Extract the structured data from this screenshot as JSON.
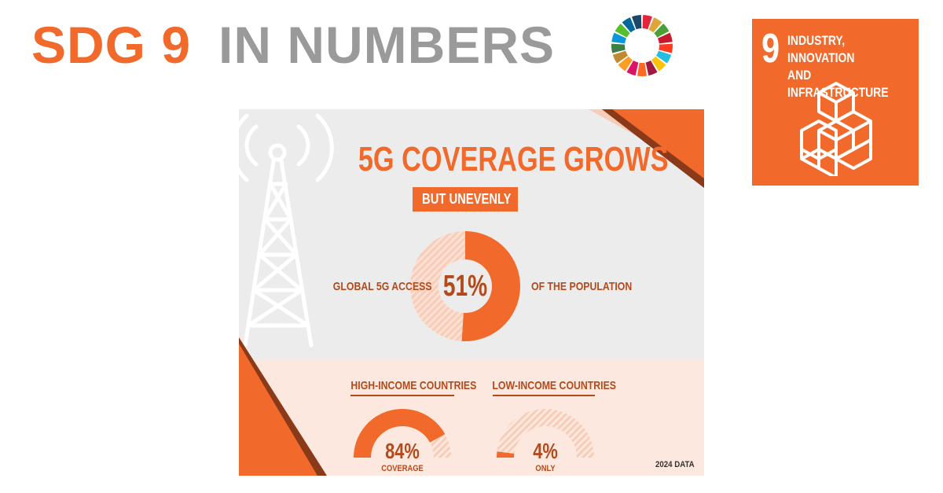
{
  "colors": {
    "accent": "#f26a2b",
    "dark": "#b24a1c",
    "pale": "#f7cdb8",
    "tri_dark": "#8a3a18"
  },
  "header": {
    "sdg": "SDG 9",
    "rest": "IN NUMBERS"
  },
  "goal_card": {
    "number": "9",
    "title": "INDUSTRY, INNOVATION\nAND INFRASTRUCTURE",
    "icon": "stacked-cubes-icon"
  },
  "decorations": {
    "logo": "sdg-color-wheel-icon",
    "background": "cell-tower-icon"
  },
  "chart_data": [
    {
      "type": "pie",
      "title": "5G COVERAGE GROWS",
      "subtitle": "BUT UNEVENLY",
      "label_left": "GLOBAL 5G ACCESS",
      "label_right": "OF THE POPULATION",
      "value": 51,
      "value_label": "51%",
      "donut": true
    },
    {
      "type": "pie",
      "gauge": true,
      "categories": [
        "HIGH-INCOME COUNTRIES",
        "LOW-INCOME COUNTRIES"
      ],
      "values": [
        84,
        4
      ],
      "value_labels": [
        "84%",
        "4%"
      ],
      "captions": [
        "COVERAGE",
        "ONLY"
      ],
      "note": "2024 DATA"
    }
  ]
}
